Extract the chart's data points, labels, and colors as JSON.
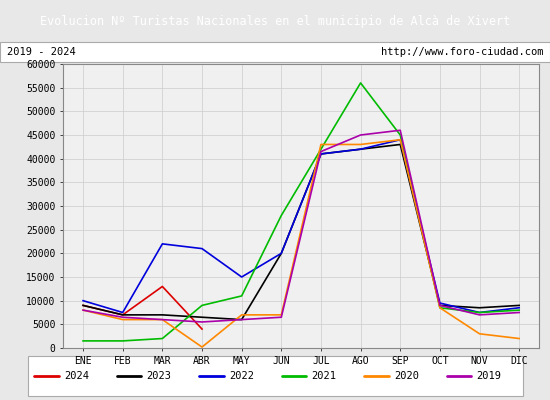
{
  "title": "Evolucion Nº Turistas Nacionales en el municipio de Alcà de Xivert",
  "subtitle_left": "2019 - 2024",
  "subtitle_right": "http://www.foro-ciudad.com",
  "xlabel_months": [
    "ENE",
    "FEB",
    "MAR",
    "ABR",
    "MAY",
    "JUN",
    "JUL",
    "AGO",
    "SEP",
    "OCT",
    "NOV",
    "DIC"
  ],
  "ylim": [
    0,
    60000
  ],
  "yticks": [
    0,
    5000,
    10000,
    15000,
    20000,
    25000,
    30000,
    35000,
    40000,
    45000,
    50000,
    55000,
    60000
  ],
  "series": {
    "2024": {
      "color": "#dd0000",
      "linewidth": 1.2,
      "data": [
        9000,
        7000,
        13000,
        4000,
        null,
        null,
        null,
        null,
        null,
        null,
        null,
        null
      ]
    },
    "2023": {
      "color": "#000000",
      "linewidth": 1.2,
      "data": [
        9000,
        7000,
        7000,
        6500,
        6000,
        20000,
        41000,
        42000,
        43000,
        9000,
        8500,
        9000
      ]
    },
    "2022": {
      "color": "#0000dd",
      "linewidth": 1.2,
      "data": [
        10000,
        7500,
        22000,
        21000,
        15000,
        20000,
        41000,
        42000,
        44000,
        9500,
        7500,
        8500
      ]
    },
    "2021": {
      "color": "#00bb00",
      "linewidth": 1.2,
      "data": [
        1500,
        1500,
        2000,
        9000,
        11000,
        28000,
        42000,
        56000,
        45000,
        8500,
        7500,
        8000
      ]
    },
    "2020": {
      "color": "#ff8800",
      "linewidth": 1.2,
      "data": [
        8000,
        6000,
        6000,
        200,
        7000,
        7000,
        43000,
        43000,
        44000,
        8500,
        3000,
        2000
      ]
    },
    "2019": {
      "color": "#aa00aa",
      "linewidth": 1.2,
      "data": [
        8000,
        6500,
        6000,
        5500,
        6000,
        6500,
        41500,
        45000,
        46000,
        9000,
        7000,
        7500
      ]
    }
  },
  "background_color": "#e8e8e8",
  "plot_background": "#f0f0f0",
  "title_bg": "#4472c4",
  "title_color": "#ffffff",
  "grid_color": "#cccccc",
  "border_color": "#aaaaaa"
}
